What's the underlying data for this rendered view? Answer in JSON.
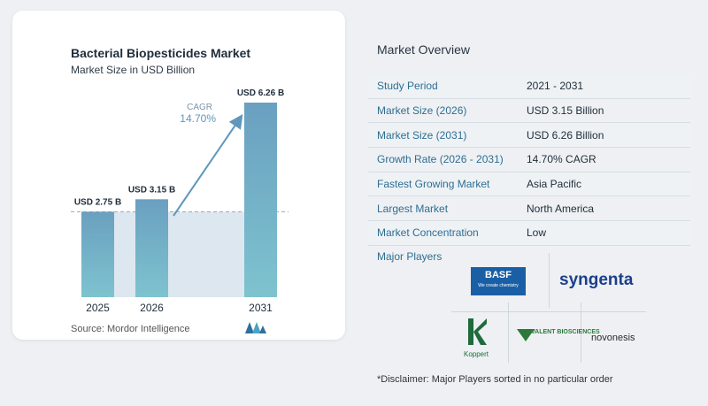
{
  "chart_data": {
    "type": "bar",
    "title": "Bacterial Biopesticides Market",
    "subtitle": "Market Size in USD Billion",
    "categories": [
      "2025",
      "2026",
      "2031"
    ],
    "values": [
      2.75,
      3.15,
      6.26
    ],
    "data_labels": [
      "USD 2.75 B",
      "USD 3.15 B",
      "USD 6.26 B"
    ],
    "cagr_label": "CAGR",
    "cagr_value": "14.70%",
    "ylim": [
      0,
      7
    ],
    "grid": false,
    "bar_color": "#6aa0c0",
    "bar_color_end": "#7ec3cf",
    "baseline_band_color": "#dde7f0",
    "arrow_color": "#5f97bb"
  },
  "source": "Source:  Mordor Intelligence",
  "overview": {
    "title": "Market Overview",
    "rows": [
      {
        "label": "Study Period",
        "value": "2021 - 2031"
      },
      {
        "label": "Market Size (2026)",
        "value": "USD 3.15 Billion"
      },
      {
        "label": "Market Size (2031)",
        "value": "USD 6.26 Billion"
      },
      {
        "label": "Growth Rate (2026 - 2031)",
        "value": "14.70% CAGR"
      },
      {
        "label": "Fastest Growing Market",
        "value": "Asia Pacific"
      },
      {
        "label": "Largest Market",
        "value": "North America"
      },
      {
        "label": "Market Concentration",
        "value": "Low"
      }
    ]
  },
  "players": {
    "title": "Major Players",
    "basf_name": "BASF",
    "basf_tagline": "We create chemistry",
    "syngenta": "syngenta",
    "koppert": "Koppert",
    "valent": "VALENT BIOSCIENCES",
    "novonesis": "novonesis"
  },
  "disclaimer": "*Disclaimer: Major Players sorted in no particular order"
}
